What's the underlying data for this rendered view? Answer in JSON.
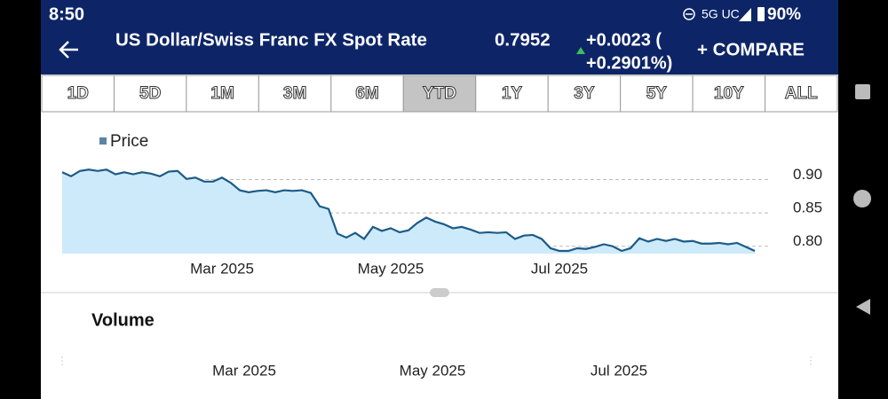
{
  "status_bar": {
    "time": "8:50",
    "network": "5G UC",
    "battery": "90%"
  },
  "header": {
    "title": "US Dollar/Swiss Franc FX Spot Rate",
    "price": "0.7952",
    "change_line1": "+0.0023 (",
    "change_line2": "+0.2901%)",
    "compare": "+ COMPARE"
  },
  "range_tabs": [
    {
      "label": "1D"
    },
    {
      "label": "5D"
    },
    {
      "label": "1M"
    },
    {
      "label": "3M"
    },
    {
      "label": "6M"
    },
    {
      "label": "YTD",
      "selected": true
    },
    {
      "label": "1Y"
    },
    {
      "label": "3Y"
    },
    {
      "label": "5Y"
    },
    {
      "label": "10Y"
    },
    {
      "label": "ALL"
    }
  ],
  "chart_data": {
    "type": "line",
    "categories": [
      null,
      null,
      null,
      null,
      null,
      null,
      null,
      null,
      null,
      null,
      null,
      null,
      null,
      null,
      null,
      null,
      null,
      null,
      "Mar 2025",
      null,
      null,
      null,
      null,
      null,
      null,
      null,
      null,
      null,
      null,
      null,
      null,
      null,
      null,
      null,
      null,
      null,
      null,
      "May 2025",
      null,
      null,
      null,
      null,
      null,
      null,
      null,
      null,
      null,
      null,
      null,
      null,
      null,
      null,
      null,
      null,
      null,
      null,
      "Jul 2025",
      null,
      null,
      null,
      null,
      null,
      null,
      null,
      null,
      null,
      null,
      null,
      null,
      null,
      null,
      null,
      null,
      null,
      null,
      null,
      null,
      null,
      null
    ],
    "series": [
      {
        "name": "Price",
        "color": "#1d5b86",
        "fill": "#cdeafb",
        "legend_color": "#5b84a8",
        "values": [
          0.911,
          0.905,
          0.913,
          0.915,
          0.913,
          0.915,
          0.908,
          0.911,
          0.908,
          0.911,
          0.909,
          0.905,
          0.912,
          0.913,
          0.901,
          0.903,
          0.897,
          0.897,
          0.903,
          0.895,
          0.884,
          0.881,
          0.883,
          0.884,
          0.881,
          0.884,
          0.883,
          0.884,
          0.88,
          0.86,
          0.856,
          0.819,
          0.813,
          0.82,
          0.811,
          0.829,
          0.823,
          0.827,
          0.821,
          0.824,
          0.835,
          0.843,
          0.837,
          0.833,
          0.827,
          0.829,
          0.825,
          0.82,
          0.821,
          0.82,
          0.821,
          0.811,
          0.816,
          0.817,
          0.811,
          0.797,
          0.793,
          0.793,
          0.797,
          0.796,
          0.799,
          0.803,
          0.8,
          0.793,
          0.797,
          0.812,
          0.807,
          0.811,
          0.808,
          0.811,
          0.807,
          0.808,
          0.804,
          0.804,
          0.805,
          0.803,
          0.805,
          0.799,
          0.793
        ]
      }
    ],
    "ylim": [
      0.789,
      0.93
    ],
    "yticks": [
      {
        "value": 0.8,
        "label": "0.80"
      },
      0.85,
      {
        "value": 0.9,
        "label": "0.90"
      }
    ],
    "grid": true
  },
  "volume": {
    "title": "Volume",
    "x_labels": [
      "Mar 2025",
      "May 2025",
      "Jul 2025"
    ]
  }
}
